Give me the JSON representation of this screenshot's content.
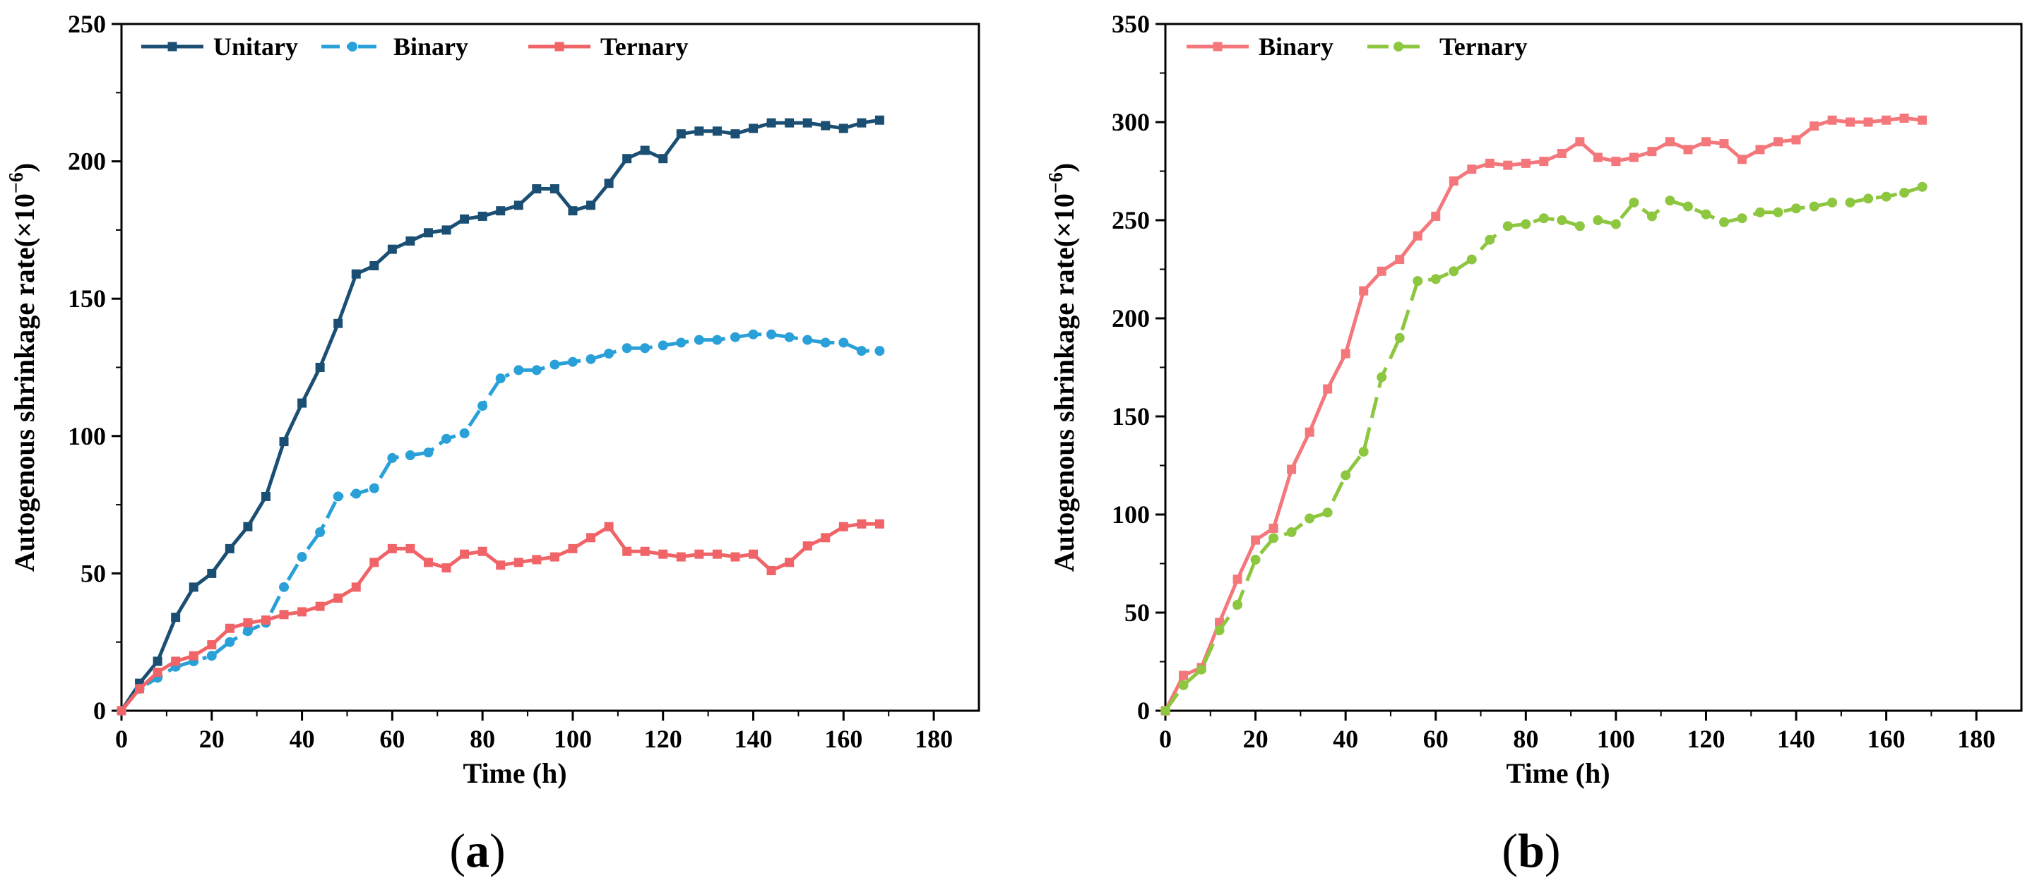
{
  "chart_data": [
    {
      "type": "line",
      "panel_label": {
        "open": "(",
        "letter": "a",
        "close": ")"
      },
      "xlabel": "Time (h)",
      "ylabel": {
        "main": "Autogenous shrinkage rate(×10",
        "exp": "−6",
        "close": ")"
      },
      "xlim": [
        0,
        190
      ],
      "ylim": [
        0,
        250
      ],
      "xticks": [
        0,
        20,
        40,
        60,
        80,
        100,
        120,
        140,
        160,
        180
      ],
      "yticks": [
        0,
        50,
        100,
        150,
        200,
        250
      ],
      "legend_position": "top-left",
      "series": [
        {
          "name": "Unitary",
          "color": "#1a4f73",
          "dash": "solid",
          "marker": "square",
          "x": [
            0,
            4,
            8,
            12,
            16,
            20,
            24,
            28,
            32,
            36,
            40,
            44,
            48,
            52,
            56,
            60,
            64,
            68,
            72,
            76,
            80,
            84,
            88,
            92,
            96,
            100,
            104,
            108,
            112,
            116,
            120,
            124,
            128,
            132,
            136,
            140,
            144,
            148,
            152,
            156,
            160,
            164,
            168
          ],
          "y": [
            0,
            10,
            18,
            34,
            45,
            50,
            59,
            67,
            78,
            98,
            112,
            125,
            141,
            159,
            162,
            168,
            171,
            174,
            175,
            179,
            180,
            182,
            184,
            190,
            190,
            182,
            184,
            192,
            201,
            204,
            201,
            210,
            211,
            211,
            210,
            212,
            214,
            214,
            214,
            213,
            212,
            214,
            215
          ]
        },
        {
          "name": "Binary",
          "color": "#2aa0d8",
          "dash": "dashdot",
          "marker": "circle",
          "x": [
            0,
            4,
            8,
            12,
            16,
            20,
            24,
            28,
            32,
            36,
            40,
            44,
            48,
            52,
            56,
            60,
            64,
            68,
            72,
            76,
            80,
            84,
            88,
            92,
            96,
            100,
            104,
            108,
            112,
            116,
            120,
            124,
            128,
            132,
            136,
            140,
            144,
            148,
            152,
            156,
            160,
            164,
            168
          ],
          "y": [
            0,
            8,
            12,
            16,
            18,
            20,
            25,
            29,
            32,
            45,
            56,
            65,
            78,
            79,
            81,
            92,
            93,
            94,
            99,
            101,
            111,
            121,
            124,
            124,
            126,
            127,
            128,
            130,
            132,
            132,
            133,
            134,
            135,
            135,
            136,
            137,
            137,
            136,
            135,
            134,
            134,
            131,
            131
          ]
        },
        {
          "name": "Ternary",
          "color": "#f06468",
          "dash": "solid",
          "marker": "square",
          "x": [
            0,
            4,
            8,
            12,
            16,
            20,
            24,
            28,
            32,
            36,
            40,
            44,
            48,
            52,
            56,
            60,
            64,
            68,
            72,
            76,
            80,
            84,
            88,
            92,
            96,
            100,
            104,
            108,
            112,
            116,
            120,
            124,
            128,
            132,
            136,
            140,
            144,
            148,
            152,
            156,
            160,
            164,
            168
          ],
          "y": [
            0,
            8,
            14,
            18,
            20,
            24,
            30,
            32,
            33,
            35,
            36,
            38,
            41,
            45,
            54,
            59,
            59,
            54,
            52,
            57,
            58,
            53,
            54,
            55,
            56,
            59,
            63,
            67,
            58,
            58,
            57,
            56,
            57,
            57,
            56,
            57,
            51,
            54,
            60,
            63,
            67,
            68,
            68
          ]
        }
      ]
    },
    {
      "type": "line",
      "panel_label": {
        "open": "(",
        "letter": "b",
        "close": ")"
      },
      "xlabel": "Time (h)",
      "ylabel": {
        "main": "Autogenous shrinkage rate(×10",
        "exp": "−6",
        "close": ")"
      },
      "xlim": [
        0,
        190
      ],
      "ylim": [
        0,
        350
      ],
      "xticks": [
        0,
        20,
        40,
        60,
        80,
        100,
        120,
        140,
        160,
        180
      ],
      "yticks": [
        0,
        50,
        100,
        150,
        200,
        250,
        300,
        350
      ],
      "legend_position": "top-left",
      "series": [
        {
          "name": "Binary",
          "color": "#f4777b",
          "dash": "solid",
          "marker": "square",
          "x": [
            0,
            4,
            8,
            12,
            16,
            20,
            24,
            28,
            32,
            36,
            40,
            44,
            48,
            52,
            56,
            60,
            64,
            68,
            72,
            76,
            80,
            84,
            88,
            92,
            96,
            100,
            104,
            108,
            112,
            116,
            120,
            124,
            128,
            132,
            136,
            140,
            144,
            148,
            152,
            156,
            160,
            164,
            168
          ],
          "y": [
            0,
            18,
            22,
            45,
            67,
            87,
            93,
            123,
            142,
            164,
            182,
            214,
            224,
            230,
            242,
            252,
            270,
            276,
            279,
            278,
            279,
            280,
            284,
            290,
            282,
            280,
            282,
            285,
            290,
            286,
            290,
            289,
            281,
            286,
            290,
            291,
            298,
            301,
            300,
            300,
            301,
            302,
            301
          ]
        },
        {
          "name": "Ternary",
          "color": "#8dc63f",
          "dash": "dash",
          "marker": "circle",
          "x": [
            0,
            4,
            8,
            12,
            16,
            20,
            24,
            28,
            32,
            36,
            40,
            44,
            48,
            52,
            56,
            60,
            64,
            68,
            72,
            76,
            80,
            84,
            88,
            92,
            96,
            100,
            104,
            108,
            112,
            116,
            120,
            124,
            128,
            132,
            136,
            140,
            144,
            148,
            152,
            156,
            160,
            164,
            168
          ],
          "y": [
            0,
            13,
            21,
            41,
            54,
            77,
            88,
            91,
            98,
            101,
            120,
            132,
            170,
            190,
            219,
            220,
            224,
            230,
            240,
            247,
            248,
            251,
            250,
            247,
            250,
            248,
            259,
            252,
            260,
            257,
            253,
            249,
            251,
            254,
            254,
            256,
            257,
            259,
            259,
            261,
            262,
            264,
            267
          ]
        }
      ]
    }
  ]
}
